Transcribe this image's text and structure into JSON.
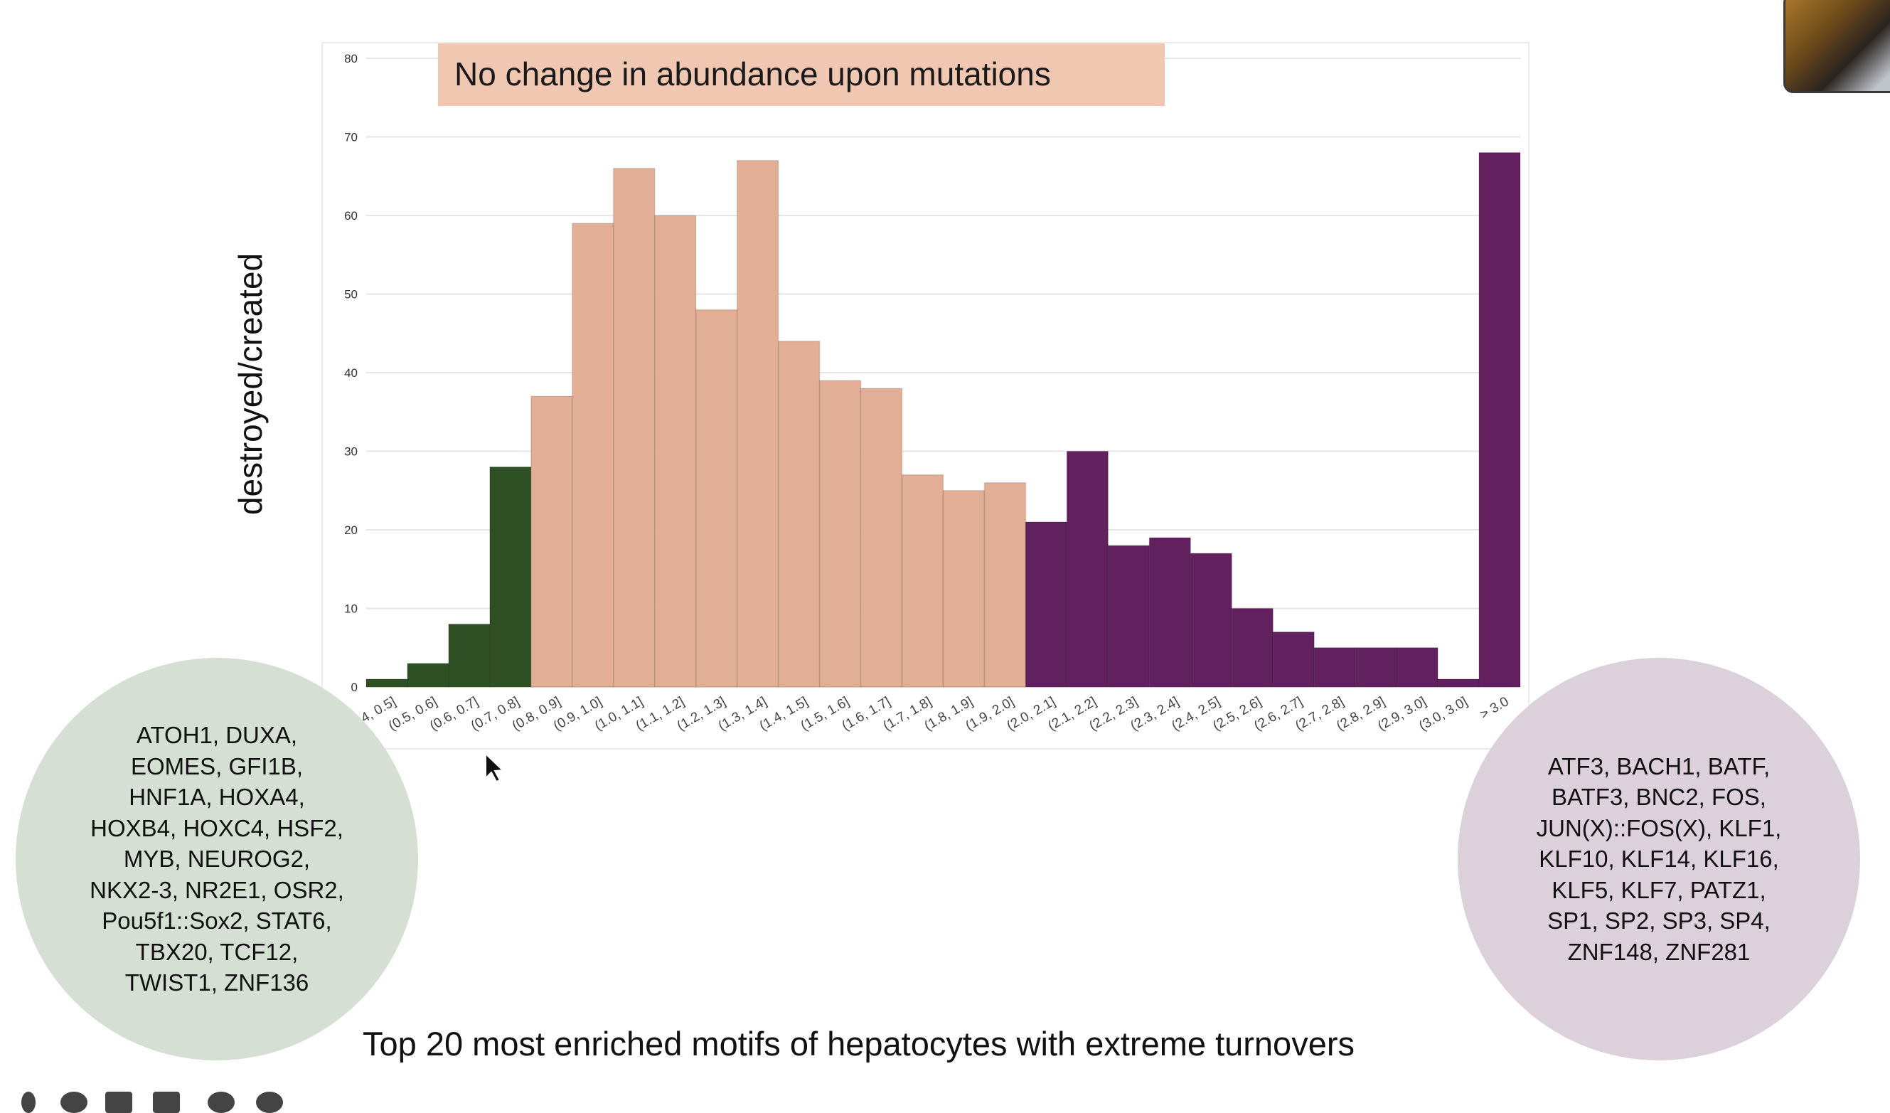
{
  "chart_data": {
    "type": "bar",
    "title": "No change in abundance upon mutations",
    "ylabel": "destroyed/created",
    "xlabel": "",
    "ylim": [
      0,
      80
    ],
    "yticks": [
      0,
      10,
      20,
      30,
      40,
      50,
      60,
      70,
      80
    ],
    "grid": true,
    "categories": [
      "[0.4, 0.5]",
      "(0.5, 0.6]",
      "(0.6, 0.7]",
      "(0.7, 0.8]",
      "(0.8, 0.9]",
      "(0.9, 1.0]",
      "(1.0, 1.1]",
      "(1.1, 1.2]",
      "(1.2, 1.3]",
      "(1.3, 1.4]",
      "(1.4, 1.5]",
      "(1.5, 1.6]",
      "(1.6, 1.7]",
      "(1.7, 1.8]",
      "(1.8, 1.9]",
      "(1.9, 2.0]",
      "(2.0, 2.1]",
      "(2.1, 2.2]",
      "(2.2, 2.3]",
      "(2.3, 2.4]",
      "(2.4, 2.5]",
      "(2.5, 2.6]",
      "(2.6, 2.7]",
      "(2.7, 2.8]",
      "(2.8, 2.9]",
      "(2.9, 3.0]",
      "(3.0, 3.0]",
      "> 3.0"
    ],
    "values": [
      1,
      3,
      8,
      28,
      37,
      59,
      66,
      60,
      48,
      67,
      44,
      39,
      38,
      27,
      25,
      26,
      21,
      30,
      18,
      19,
      17,
      10,
      7,
      5,
      5,
      5,
      1,
      68
    ],
    "bar_colors": [
      "#2f4f24",
      "#2f4f24",
      "#2f4f24",
      "#2f4f24",
      "#e2ae95",
      "#e2ae95",
      "#e2ae95",
      "#e2ae95",
      "#e2ae95",
      "#e2ae95",
      "#e2ae95",
      "#e2ae95",
      "#e2ae95",
      "#e2ae95",
      "#e2ae95",
      "#e2ae95",
      "#62205f",
      "#62205f",
      "#62205f",
      "#62205f",
      "#62205f",
      "#62205f",
      "#62205f",
      "#62205f",
      "#62205f",
      "#62205f",
      "#62205f",
      "#62205f"
    ],
    "title_box_color": "#f0c8b2"
  },
  "left_circle": {
    "text": "ATOH1, DUXA, EOMES, GFI1B, HNF1A, HOXA4, HOXB4, HOXC4, HSF2, MYB, NEUROG2, NKX2-3, NR2E1, OSR2, Pou5f1::Sox2, STAT6, TBX20, TCF12, TWIST1, ZNF136",
    "color": "#d5dfd3"
  },
  "right_circle": {
    "text": "ATF3, BACH1, BATF, BATF3, BNC2, FOS, JUN(X)::FOS(X), KLF1, KLF10, KLF14, KLF16, KLF5, KLF7, PATZ1, SP1, SP2, SP3, SP4, ZNF148, ZNF281",
    "color": "#dcd0db"
  },
  "caption": "Top 20 most enriched motifs of hepatocytes with extreme turnovers"
}
